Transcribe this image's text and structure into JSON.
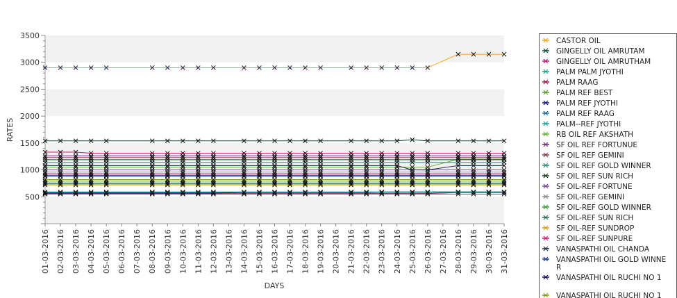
{
  "chart_data": {
    "type": "line",
    "xlabel": "DAYS",
    "ylabel": "RATES",
    "ylim": [
      0,
      3500
    ],
    "yticks": [
      500,
      1000,
      1500,
      2000,
      2500,
      3000,
      3500
    ],
    "grid": "alternating horizontal bands",
    "legend_position": "right",
    "categories": [
      "01-03-2016",
      "02-03-2016",
      "03-03-2016",
      "04-03-2016",
      "05-03-2016",
      "06-03-2016",
      "07-03-2016",
      "08-03-2016",
      "09-03-2016",
      "10-03-2016",
      "11-03-2016",
      "12-03-2016",
      "13-03-2016",
      "14-03-2016",
      "15-03-2016",
      "16-03-2016",
      "17-03-2016",
      "18-03-2016",
      "19-03-2016",
      "20-03-2016",
      "21-03-2016",
      "22-03-2016",
      "23-03-2016",
      "24-03-2016",
      "25-03-2016",
      "26-03-2016",
      "27-03-2016",
      "28-03-2016",
      "29-03-2016",
      "30-03-2016",
      "31-03-2016"
    ],
    "series": [
      {
        "name": "CASTOR OIL",
        "color": "#f5a623",
        "values": [
          2900,
          2900,
          2900,
          2900,
          2900,
          null,
          null,
          2900,
          2900,
          2900,
          2900,
          2900,
          null,
          2900,
          2900,
          2900,
          2900,
          2900,
          2900,
          null,
          2900,
          2900,
          2900,
          2900,
          2900,
          2900,
          null,
          3150,
          3150,
          3150,
          3150
        ]
      },
      {
        "name": "GINGELLY OIL AMRUTAM",
        "color": "#0b4a3a",
        "values": [
          1540,
          1540,
          1540,
          1540,
          1540,
          null,
          null,
          1540,
          1540,
          1540,
          1540,
          1540,
          null,
          1540,
          1540,
          1540,
          1540,
          1540,
          1540,
          null,
          1540,
          1540,
          1540,
          1540,
          1560,
          1540,
          null,
          1540,
          1540,
          1540,
          1540
        ]
      },
      {
        "name": "GINGELLY OIL AMRUTHAM",
        "color": "#c0187a",
        "values": [
          1330,
          1330,
          1330,
          1310,
          1310,
          null,
          null,
          1310,
          1310,
          1310,
          1310,
          1310,
          null,
          1310,
          1310,
          1310,
          1310,
          1310,
          1310,
          null,
          1310,
          1310,
          1310,
          1310,
          1310,
          1310,
          null,
          1310,
          1310,
          1310,
          1310
        ]
      },
      {
        "name": "PALM PALM JYOTHI",
        "color": "#18a58a",
        "values": [
          580,
          580,
          580,
          580,
          580,
          null,
          null,
          580,
          580,
          580,
          580,
          580,
          null,
          580,
          580,
          580,
          580,
          580,
          580,
          null,
          580,
          580,
          580,
          580,
          580,
          580,
          null,
          580,
          580,
          580,
          580
        ]
      },
      {
        "name": "PALM RAAG",
        "color": "#a0174a",
        "values": [
          560,
          560,
          560,
          560,
          560,
          null,
          null,
          560,
          560,
          560,
          560,
          560,
          null,
          560,
          560,
          560,
          560,
          560,
          560,
          null,
          560,
          560,
          560,
          560,
          560,
          560,
          null,
          580,
          580,
          580,
          580
        ]
      },
      {
        "name": "PALM REF BEST",
        "color": "#5a9a2a",
        "values": [
          790,
          790,
          790,
          790,
          790,
          null,
          null,
          790,
          790,
          790,
          790,
          790,
          null,
          790,
          790,
          790,
          790,
          790,
          790,
          null,
          790,
          790,
          790,
          790,
          790,
          790,
          null,
          790,
          790,
          790,
          790
        ]
      },
      {
        "name": "PALM REF JYOTHI",
        "color": "#101080",
        "values": [
          570,
          570,
          570,
          570,
          570,
          null,
          null,
          570,
          570,
          570,
          570,
          570,
          null,
          580,
          580,
          580,
          580,
          580,
          580,
          null,
          580,
          580,
          590,
          590,
          590,
          590,
          null,
          590,
          590,
          590,
          590
        ]
      },
      {
        "name": "PALM REF RAAG",
        "color": "#1a6aa0",
        "values": [
          550,
          550,
          550,
          550,
          550,
          null,
          null,
          550,
          550,
          550,
          550,
          550,
          null,
          550,
          550,
          550,
          550,
          550,
          550,
          null,
          550,
          550,
          550,
          550,
          550,
          550,
          null,
          550,
          550,
          550,
          550
        ]
      },
      {
        "name": "PALM--REF JYOTHI",
        "color": "#20a0a0",
        "values": [
          590,
          590,
          590,
          590,
          590,
          null,
          null,
          590,
          590,
          590,
          590,
          590,
          null,
          590,
          590,
          590,
          590,
          590,
          590,
          null,
          590,
          590,
          590,
          590,
          590,
          590,
          null,
          590,
          590,
          590,
          590
        ]
      },
      {
        "name": "RB OIL REF AKSHATH",
        "color": "#6ab03a",
        "values": [
          1050,
          1050,
          1050,
          1050,
          1050,
          null,
          null,
          1050,
          1050,
          1050,
          1050,
          1050,
          null,
          1050,
          1050,
          1050,
          1050,
          1050,
          1050,
          null,
          1050,
          1050,
          1050,
          1050,
          1050,
          1050,
          null,
          1200,
          1200,
          1200,
          1200
        ]
      },
      {
        "name": "SF OIL REF FORTUNUE",
        "color": "#6a2a7a",
        "values": [
          1260,
          1260,
          1260,
          1260,
          1260,
          null,
          null,
          1260,
          1260,
          1260,
          1260,
          1260,
          null,
          1260,
          1260,
          1260,
          1260,
          1260,
          1260,
          null,
          1260,
          1260,
          1260,
          1260,
          1260,
          1260,
          null,
          1260,
          1260,
          1260,
          1260
        ]
      },
      {
        "name": "SF OIL REF GEMINI",
        "color": "#8a3a4a",
        "values": [
          1230,
          1230,
          1230,
          1230,
          1230,
          null,
          null,
          1230,
          1230,
          1230,
          1230,
          1230,
          null,
          1230,
          1230,
          1230,
          1230,
          1230,
          1230,
          null,
          1230,
          1230,
          1230,
          1230,
          1230,
          1230,
          null,
          1230,
          1230,
          1230,
          1230
        ]
      },
      {
        "name": "SF OIL REF GOLD WINNER",
        "color": "#2a8a7a",
        "values": [
          1140,
          1140,
          1140,
          1140,
          1140,
          null,
          null,
          1140,
          1140,
          1140,
          1140,
          1140,
          null,
          1140,
          1140,
          1140,
          1140,
          1140,
          1140,
          null,
          1140,
          1140,
          1140,
          1140,
          1140,
          1140,
          null,
          1140,
          1140,
          1140,
          1140
        ]
      },
      {
        "name": "SF OIL REF SUN RICH",
        "color": "#1a3a1a",
        "values": [
          1190,
          1190,
          1190,
          1190,
          1190,
          null,
          null,
          1190,
          1190,
          1190,
          1190,
          1190,
          null,
          1190,
          1190,
          1190,
          1190,
          1190,
          1190,
          null,
          1190,
          1190,
          1190,
          1190,
          1190,
          1190,
          null,
          1190,
          1190,
          1190,
          1190
        ]
      },
      {
        "name": "SF OIL-REF FORTUNE",
        "color": "#7a4a9a",
        "values": [
          1000,
          1000,
          1000,
          1000,
          1000,
          null,
          null,
          1000,
          1000,
          1000,
          1000,
          1000,
          null,
          1000,
          1000,
          1000,
          1000,
          1000,
          1000,
          null,
          1000,
          1000,
          1000,
          1000,
          1000,
          1000,
          null,
          1000,
          1000,
          1000,
          1000
        ]
      },
      {
        "name": "SF OIL-REF GEMINI",
        "color": "#8a8a8a",
        "values": [
          960,
          960,
          960,
          960,
          960,
          null,
          null,
          960,
          960,
          960,
          960,
          960,
          null,
          960,
          960,
          960,
          960,
          960,
          960,
          null,
          960,
          960,
          960,
          960,
          960,
          960,
          null,
          960,
          960,
          960,
          960
        ]
      },
      {
        "name": "SF OIL-REF GOLD WINNER",
        "color": "#3a9a3a",
        "values": [
          760,
          760,
          760,
          760,
          760,
          null,
          null,
          760,
          760,
          760,
          760,
          760,
          null,
          760,
          760,
          760,
          760,
          760,
          760,
          null,
          760,
          760,
          760,
          760,
          760,
          760,
          null,
          760,
          760,
          760,
          760
        ]
      },
      {
        "name": "SF OIL-REF SUN RICH",
        "color": "#2a6a5a",
        "values": [
          740,
          740,
          740,
          740,
          740,
          null,
          null,
          740,
          740,
          740,
          740,
          740,
          null,
          740,
          740,
          740,
          740,
          740,
          740,
          null,
          740,
          740,
          740,
          740,
          740,
          740,
          null,
          740,
          740,
          740,
          740
        ]
      },
      {
        "name": "SF OIL-REF SUNDROP",
        "color": "#d49a1a",
        "values": [
          720,
          720,
          720,
          720,
          720,
          null,
          null,
          720,
          720,
          720,
          720,
          720,
          null,
          720,
          720,
          720,
          720,
          720,
          720,
          null,
          720,
          720,
          720,
          720,
          720,
          720,
          null,
          720,
          720,
          720,
          720
        ]
      },
      {
        "name": "SF OIL-REF SUNPURE",
        "color": "#d01a7a",
        "values": [
          930,
          930,
          930,
          930,
          930,
          null,
          null,
          930,
          930,
          930,
          930,
          930,
          null,
          930,
          930,
          930,
          930,
          930,
          930,
          null,
          930,
          930,
          930,
          930,
          930,
          930,
          null,
          930,
          930,
          930,
          930
        ]
      },
      {
        "name": "VANASPATHI OIL CHANDA",
        "color": "#1a2a4a",
        "values": [
          1080,
          1080,
          1080,
          1080,
          1080,
          null,
          null,
          1080,
          1080,
          1080,
          1080,
          1080,
          null,
          1080,
          1080,
          1080,
          1080,
          1080,
          1080,
          null,
          1080,
          1080,
          1080,
          1080,
          1000,
          1000,
          null,
          1080,
          1080,
          1080,
          1080
        ]
      },
      {
        "name": "VANASPATHI OIL GOLD WINNE R",
        "color": "#1a3aa0",
        "values": [
          880,
          880,
          880,
          880,
          880,
          null,
          null,
          880,
          880,
          880,
          880,
          880,
          null,
          880,
          880,
          880,
          880,
          880,
          880,
          null,
          880,
          880,
          880,
          880,
          880,
          880,
          null,
          880,
          880,
          880,
          880
        ]
      },
      {
        "name": "VANASPATHI OIL RUCHI NO 1",
        "color": "#10106a",
        "values": [
          900,
          900,
          900,
          900,
          900,
          null,
          null,
          900,
          900,
          900,
          900,
          900,
          null,
          900,
          900,
          900,
          900,
          900,
          900,
          null,
          900,
          900,
          900,
          900,
          900,
          900,
          null,
          900,
          900,
          900,
          900
        ]
      },
      {
        "name": "VANASPATHI OIL RUCHI NO 1",
        "color": "#8a9a1a",
        "values": [
          820,
          820,
          820,
          820,
          820,
          null,
          null,
          820,
          820,
          820,
          820,
          820,
          null,
          820,
          820,
          820,
          820,
          820,
          820,
          null,
          820,
          820,
          820,
          820,
          820,
          820,
          null,
          820,
          820,
          820,
          820
        ]
      }
    ]
  }
}
